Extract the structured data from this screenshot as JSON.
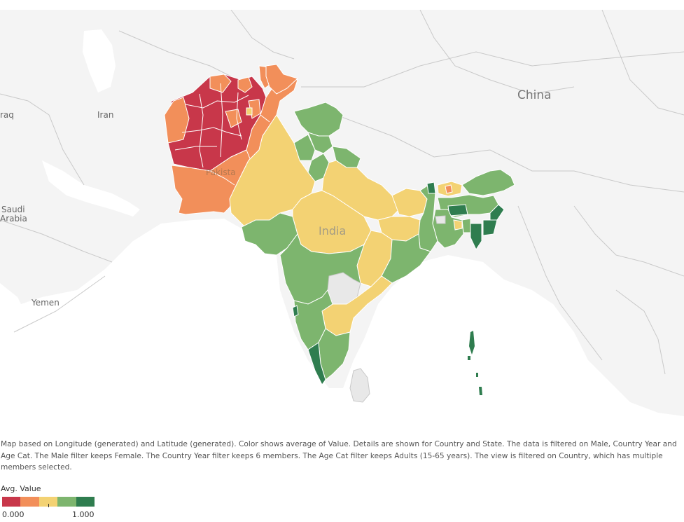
{
  "map": {
    "labels": {
      "china": "China",
      "iran": "Iran",
      "iraq": "raq",
      "saudi_1": "Saudi",
      "saudi_2": "Arabia",
      "yemen": "Yemen",
      "pakistan": "Pakista",
      "india": "India"
    },
    "colors": {
      "background": "#f4f4f4",
      "water": "#ffffff",
      "border": "#c9c9c9",
      "no_data": "#e8e8e8",
      "red": "#c8374a",
      "orange": "#f28f5a",
      "yellow": "#f3d273",
      "light_green": "#7db56e",
      "dark_green": "#2f7d4f"
    }
  },
  "caption": "Map based on Longitude (generated) and Latitude (generated).  Color shows average of Value.  Details are shown for Country and State. The data is filtered on Male, Country Year and Age Cat. The Male filter keeps Female. The Country Year filter keeps 6 members. The Age Cat filter keeps Adults (15-65 years). The view is filtered on Country, which has multiple members selected.",
  "legend": {
    "title": "Avg. Value",
    "min_label": "0.000",
    "max_label": "1.000",
    "swatches": [
      "#c8374a",
      "#f28f5a",
      "#f3d273",
      "#7db56e",
      "#2f7d4f"
    ]
  }
}
